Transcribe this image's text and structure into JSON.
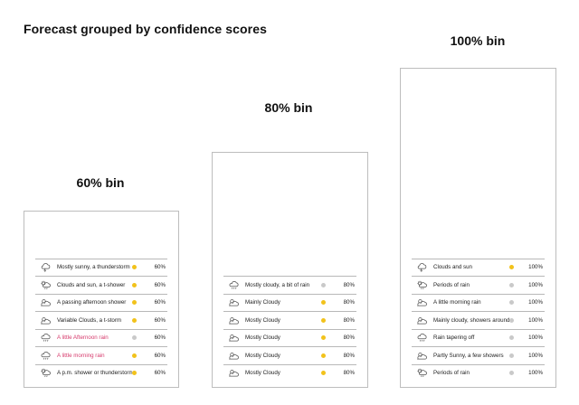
{
  "title": "Forecast grouped by confidence scores",
  "colors": {
    "yellow_dot": "#f2c21b",
    "gray_dot": "#c9c9c9",
    "alert_text": "#d63a6c",
    "border": "#bdbdbd"
  },
  "bins": [
    {
      "label": "60% bin",
      "rows": [
        {
          "icon": "storm-icon",
          "condition": "Mostly sunny, a  thunderstorm",
          "dot": "yellow",
          "value": "60%",
          "alert": false
        },
        {
          "icon": "sun-cloud-rain-icon",
          "condition": "Clouds and sun, a t-shower",
          "dot": "yellow",
          "value": "60%",
          "alert": false
        },
        {
          "icon": "cloud-sun-icon",
          "condition": "A passing afternoon shower",
          "dot": "yellow",
          "value": "60%",
          "alert": false
        },
        {
          "icon": "cloud-sun-icon",
          "condition": "Variable Clouds, a t-storm",
          "dot": "yellow",
          "value": "60%",
          "alert": false
        },
        {
          "icon": "cloud-rain-icon",
          "condition": "A little Afternoon rain",
          "dot": "gray",
          "value": "60%",
          "alert": true
        },
        {
          "icon": "cloud-rain-icon",
          "condition": "A little morning rain",
          "dot": "yellow",
          "value": "60%",
          "alert": true
        },
        {
          "icon": "sun-cloud-rain-icon",
          "condition": "A p.m.  shower or thunderstorm",
          "dot": "yellow",
          "value": "60%",
          "alert": false
        }
      ]
    },
    {
      "label": "80% bin",
      "rows": [
        {
          "icon": "cloud-rain-icon",
          "condition": "Mostly cloudy, a bit of rain",
          "dot": "gray",
          "value": "80%",
          "alert": false
        },
        {
          "icon": "cloud-sun-icon",
          "condition": "Mainly Cloudy",
          "dot": "yellow",
          "value": "80%",
          "alert": false
        },
        {
          "icon": "cloud-sun-icon",
          "condition": "Mostly Cloudy",
          "dot": "yellow",
          "value": "80%",
          "alert": false
        },
        {
          "icon": "cloud-sun-icon",
          "condition": "Mostly Cloudy",
          "dot": "yellow",
          "value": "80%",
          "alert": false
        },
        {
          "icon": "cloud-sun-icon",
          "condition": "Mostly Cloudy",
          "dot": "yellow",
          "value": "80%",
          "alert": false
        },
        {
          "icon": "cloud-sun-icon",
          "condition": "Mostly Cloudy",
          "dot": "yellow",
          "value": "80%",
          "alert": false
        }
      ]
    },
    {
      "label": "100% bin",
      "rows": [
        {
          "icon": "storm-icon",
          "condition": "Clouds and sun",
          "dot": "yellow",
          "value": "100%",
          "alert": false
        },
        {
          "icon": "sun-cloud-rain-icon",
          "condition": "Periods of rain",
          "dot": "gray",
          "value": "100%",
          "alert": false
        },
        {
          "icon": "cloud-sun-icon",
          "condition": "A little morning rain",
          "dot": "gray",
          "value": "100%",
          "alert": false
        },
        {
          "icon": "cloud-sun-icon",
          "condition": "Mainly cloudy, showers around",
          "dot": "gray",
          "value": "100%",
          "alert": false
        },
        {
          "icon": "cloud-rain-icon",
          "condition": "Rain tapering off",
          "dot": "gray",
          "value": "100%",
          "alert": false
        },
        {
          "icon": "cloud-sun-icon",
          "condition": "Partly Sunny, a few showers",
          "dot": "gray",
          "value": "100%",
          "alert": false
        },
        {
          "icon": "sun-cloud-rain-icon",
          "condition": "Periods of rain",
          "dot": "gray",
          "value": "100%",
          "alert": false
        }
      ]
    }
  ]
}
